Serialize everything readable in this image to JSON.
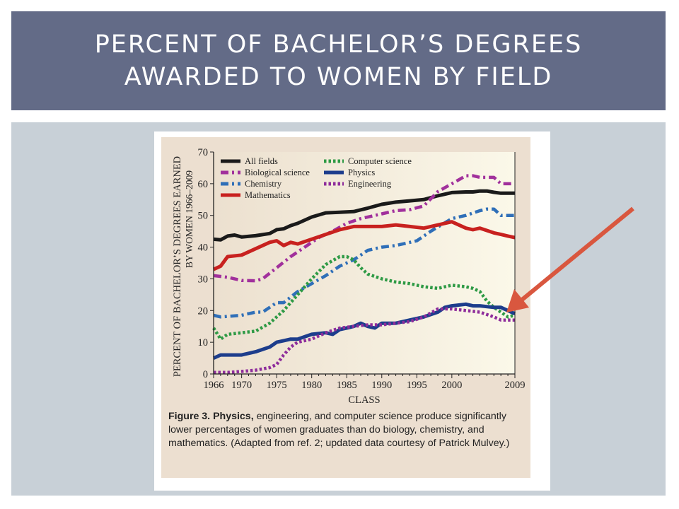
{
  "slide": {
    "title_line1": "PERCENT OF BACHELOR’S DEGREES",
    "title_line2": "AWARDED TO WOMEN BY FIELD"
  },
  "caption": {
    "label": "Figure 3. Physics,",
    "text": " engineering, and computer science produce significantly lower percentages of women graduates than do biology, chemistry, and mathematics. (Adapted from ref. 2; updated data courtesy of Patrick Mulvey.)"
  },
  "chart_data": {
    "type": "line",
    "ylabel_line1": "PERCENT OF BACHELOR’S DEGREES EARNED",
    "ylabel_line2": "BY WOMEN 1966–2009",
    "xlabel": "CLASS",
    "xlim": [
      1966,
      2009
    ],
    "ylim": [
      0,
      70
    ],
    "x_ticks": [
      "1966",
      "1970",
      "1975",
      "1980",
      "1985",
      "1990",
      "1995",
      "2000",
      "2009"
    ],
    "x_tick_values": [
      1966,
      1970,
      1975,
      1980,
      1985,
      1990,
      1995,
      2000,
      2009
    ],
    "y_ticks": [
      "0",
      "10",
      "20",
      "30",
      "40",
      "50",
      "60",
      "70"
    ],
    "y_tick_values": [
      0,
      10,
      20,
      30,
      40,
      50,
      60,
      70
    ],
    "legend_position": "top-left",
    "series": [
      {
        "name": "All fields",
        "color": "#1a1a1a",
        "dash": "solid",
        "x": [
          1966,
          1967,
          1968,
          1969,
          1970,
          1972,
          1974,
          1975,
          1976,
          1977,
          1978,
          1980,
          1982,
          1984,
          1986,
          1988,
          1990,
          1992,
          1994,
          1996,
          1998,
          2000,
          2002,
          2003,
          2004,
          2005,
          2006,
          2007,
          2008,
          2009
        ],
        "y": [
          42.5,
          42.3,
          43.5,
          43.8,
          43.2,
          43.6,
          44.3,
          45.5,
          45.8,
          46.8,
          47.5,
          49.5,
          50.8,
          51,
          51.2,
          52.3,
          53.5,
          54.2,
          54.6,
          55,
          56.2,
          57.2,
          57.4,
          57.4,
          57.7,
          57.7,
          57.3,
          57,
          57,
          57
        ]
      },
      {
        "name": "Biological science",
        "color": "#a1309c",
        "dash": "dashdot",
        "x": [
          1966,
          1968,
          1970,
          1972,
          1973,
          1975,
          1977,
          1979,
          1981,
          1983,
          1985,
          1987,
          1990,
          1992,
          1994,
          1996,
          1998,
          2000,
          2002,
          2003,
          2004,
          2006,
          2007,
          2008,
          2009
        ],
        "y": [
          31,
          30.5,
          29.5,
          29.4,
          30,
          33.5,
          37,
          40,
          43,
          45,
          47.5,
          49,
          50.5,
          51.5,
          51.8,
          53,
          57.5,
          60,
          62.5,
          62.5,
          62,
          62,
          60,
          60,
          60
        ]
      },
      {
        "name": "Chemistry",
        "color": "#2f6fb8",
        "dash": "dashdot",
        "x": [
          1966,
          1967,
          1970,
          1972,
          1973,
          1975,
          1976,
          1978,
          1980,
          1982,
          1984,
          1986,
          1988,
          1989,
          1990,
          1992,
          1995,
          1997,
          2000,
          2002,
          2004,
          2005,
          2006,
          2007,
          2008,
          2009
        ],
        "y": [
          18.5,
          18,
          18.5,
          19.5,
          19.5,
          22.5,
          22.5,
          26,
          28.5,
          31,
          34,
          36,
          39,
          39.5,
          40,
          40.5,
          42,
          45,
          49,
          50,
          51.5,
          52,
          52,
          50,
          50,
          50
        ]
      },
      {
        "name": "Mathematics",
        "color": "#c8211f",
        "dash": "solid",
        "x": [
          1966,
          1967,
          1968,
          1970,
          1972,
          1974,
          1975,
          1976,
          1977,
          1978,
          1980,
          1982,
          1984,
          1986,
          1988,
          1990,
          1992,
          1994,
          1996,
          1998,
          2000,
          2001,
          2002,
          2003,
          2004,
          2006,
          2007,
          2008,
          2009
        ],
        "y": [
          33,
          34,
          37,
          37.5,
          39.5,
          41.5,
          42,
          40.5,
          41.5,
          41,
          42.5,
          44,
          45.5,
          46.5,
          46.5,
          46.5,
          47,
          46.5,
          46,
          47,
          48,
          47,
          46,
          45.5,
          46,
          44.5,
          44,
          43.5,
          43
        ]
      },
      {
        "name": "Computer science",
        "color": "#2e9a45",
        "dash": "dotted",
        "x": [
          1966,
          1967,
          1968,
          1970,
          1972,
          1974,
          1976,
          1978,
          1980,
          1982,
          1984,
          1985,
          1986,
          1987,
          1988,
          1990,
          1992,
          1994,
          1996,
          1998,
          2000,
          2002,
          2003,
          2004,
          2005,
          2006,
          2007,
          2008,
          2009
        ],
        "y": [
          14.5,
          11,
          12.5,
          13,
          13.5,
          16,
          20,
          25,
          30,
          34.5,
          37,
          37,
          36,
          33.5,
          31.5,
          30,
          29,
          28.5,
          27.5,
          27,
          28,
          27.5,
          27,
          26,
          23,
          21,
          19.5,
          18,
          18.5
        ]
      },
      {
        "name": "Physics",
        "color": "#1d3d8c",
        "dash": "solid",
        "x": [
          1966,
          1967,
          1968,
          1970,
          1972,
          1974,
          1975,
          1976,
          1977,
          1978,
          1980,
          1982,
          1983,
          1984,
          1985,
          1986,
          1987,
          1988,
          1989,
          1990,
          1992,
          1994,
          1996,
          1998,
          1999,
          2000,
          2002,
          2003,
          2004,
          2006,
          2007,
          2008,
          2009
        ],
        "y": [
          5,
          6,
          6,
          6,
          7,
          8.5,
          10,
          10.5,
          11,
          11,
          12.5,
          13,
          12.5,
          14,
          14.5,
          15,
          16,
          15,
          14.5,
          16,
          16,
          17,
          18,
          19.5,
          21,
          21.5,
          22,
          21.5,
          21.5,
          21,
          21,
          20,
          19
        ]
      },
      {
        "name": "Engineering",
        "color": "#8e2d9b",
        "dash": "dotted",
        "x": [
          1966,
          1968,
          1970,
          1972,
          1974,
          1975,
          1976,
          1977,
          1978,
          1980,
          1982,
          1984,
          1986,
          1988,
          1990,
          1992,
          1994,
          1996,
          1998,
          2000,
          2002,
          2004,
          2006,
          2007,
          2008,
          2009
        ],
        "y": [
          0.5,
          0.5,
          0.8,
          1.2,
          2,
          3,
          6,
          8.5,
          10,
          11,
          13,
          14.5,
          15,
          15.5,
          15.5,
          16,
          16.5,
          18,
          20.5,
          20.5,
          20,
          19.5,
          18,
          17,
          17,
          17
        ]
      }
    ]
  },
  "arrow": {
    "color": "#d9573f"
  }
}
